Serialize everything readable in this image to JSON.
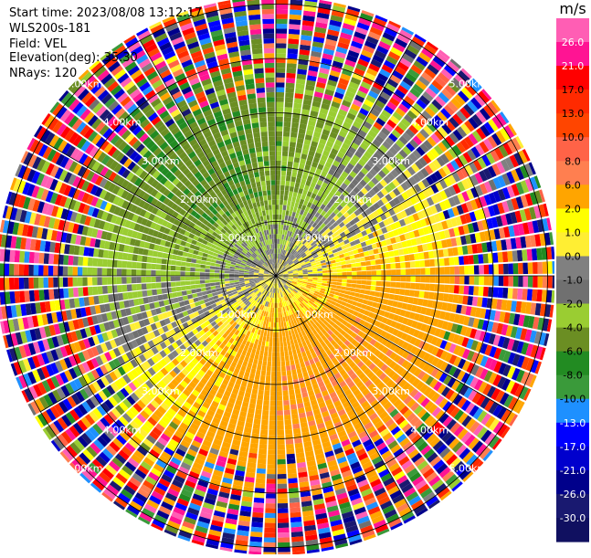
{
  "info": {
    "start_time": "Start time: 2023/08/08 13:12:17",
    "instrument": "WLS200s-181",
    "field": "Field: VEL",
    "elevation": "Elevation(deg): 35.30",
    "nrays": "NRays: 120"
  },
  "chart_data": {
    "type": "heatmap",
    "projection": "polar",
    "field": "VEL",
    "n_rays": 120,
    "range_rings_km": [
      1.0,
      2.0,
      3.0,
      4.0,
      5.0
    ],
    "ring_labels": [
      "1.00km",
      "2.00km",
      "3.00km",
      "4.00km",
      "5.00km"
    ],
    "max_range_km": 5.2,
    "colorbar": {
      "unit": "m/s",
      "ticks": [
        "26.0",
        "21.0",
        "17.0",
        "13.0",
        "10.0",
        "8.0",
        "6.0",
        "2.0",
        "1.0",
        "0.0",
        "-1.0",
        "-2.0",
        "-4.0",
        "-6.0",
        "-8.0",
        "-10.0",
        "-13.0",
        "-17.0",
        "-21.0",
        "-26.0",
        "-30.0"
      ],
      "levels": [
        30,
        26,
        21,
        17,
        13,
        10,
        8,
        6,
        2,
        1,
        0,
        -1,
        -2,
        -4,
        -6,
        -8,
        -10,
        -13,
        -17,
        -21,
        -26,
        -30
      ],
      "colors": [
        "#ff5eb4",
        "#ff1493",
        "#ff0000",
        "#ff2a00",
        "#ff4500",
        "#ff6347",
        "#ff7f50",
        "#ffa500",
        "#ffff00",
        "#ffee33",
        "#808080",
        "#707070",
        "#9acd32",
        "#6b8e23",
        "#228b22",
        "#3a9a3a",
        "#1e90ff",
        "#0000ff",
        "#0000cd",
        "#00008b",
        "#191970",
        "#101060"
      ]
    }
  }
}
